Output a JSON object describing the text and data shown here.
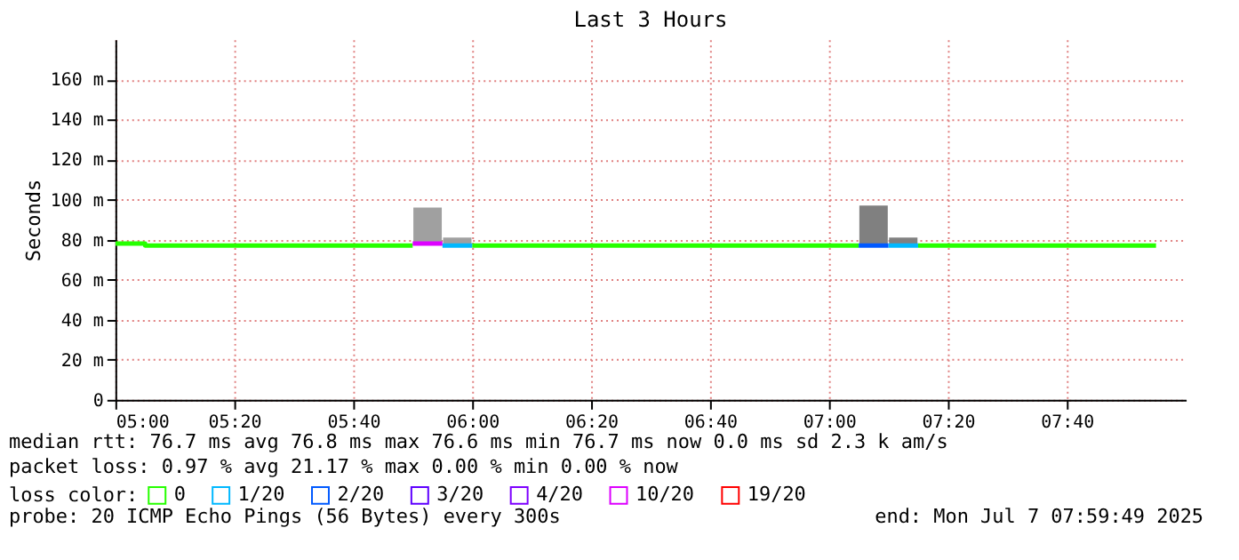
{
  "chart_data": {
    "type": "line",
    "title": "Last 3 Hours",
    "ylabel": "Seconds",
    "legend_title": "loss color:",
    "legend": "bottom",
    "grid": true,
    "xlim": [
      5.0,
      8.0
    ],
    "ylim": [
      0,
      180
    ],
    "xticks": [
      {
        "value": 5.0,
        "label": "05:00"
      },
      {
        "value": 5.3333,
        "label": "05:20"
      },
      {
        "value": 5.6667,
        "label": "05:40"
      },
      {
        "value": 6.0,
        "label": "06:00"
      },
      {
        "value": 6.3333,
        "label": "06:20"
      },
      {
        "value": 6.6667,
        "label": "06:40"
      },
      {
        "value": 7.0,
        "label": "07:00"
      },
      {
        "value": 7.3333,
        "label": "07:20"
      },
      {
        "value": 7.6667,
        "label": "07:40"
      }
    ],
    "yticks": [
      0,
      {
        "value": 20,
        "label": "20 m"
      },
      {
        "value": 40,
        "label": "40 m"
      },
      {
        "value": 60,
        "label": "60 m"
      },
      {
        "value": 80,
        "label": "80 m"
      },
      {
        "value": 100,
        "label": "100 m"
      },
      {
        "value": 120,
        "label": "120 m"
      },
      {
        "value": 140,
        "label": "140 m"
      },
      {
        "value": 160,
        "label": "160 m"
      }
    ],
    "series": [
      {
        "type": "bar",
        "x": [
          5.875,
          5.9583,
          7.125,
          7.2083
        ],
        "base": [
          78,
          78,
          78,
          78
        ],
        "values": [
          18,
          3,
          19,
          3
        ],
        "colors": [
          "#a0a0a0",
          "#a0a0a0",
          "#808080",
          "#808080"
        ]
      },
      {
        "name": "0",
        "color": "#26ff00",
        "x": [
          5.0,
          5.0833,
          5.0833,
          5.8333,
          null,
          6.0,
          7.0833,
          null,
          7.25,
          7.9167
        ],
        "values": [
          78,
          78,
          77,
          77,
          null,
          77,
          77,
          null,
          77,
          77
        ]
      },
      {
        "name": "1/20",
        "color": "#00b8ff",
        "x": [
          5.9167,
          6.0,
          null,
          7.1667,
          7.25
        ],
        "values": [
          77,
          77,
          null,
          77,
          77
        ]
      },
      {
        "name": "2/20",
        "color": "#0059ff",
        "x": [
          7.0833,
          7.1667
        ],
        "values": [
          77,
          77
        ]
      },
      {
        "name": "3/20",
        "color": "#5e00ff"
      },
      {
        "name": "4/20",
        "color": "#7e00ff"
      },
      {
        "name": "10/20",
        "color": "#dd00ff",
        "x": [
          5.8333,
          5.9167
        ],
        "values": [
          78,
          78
        ]
      },
      {
        "name": "19/20",
        "color": "#ff0000"
      }
    ],
    "annotations": [
      "median rtt:  76.7 ms avg  76.8 ms max  76.6 ms min  76.7 ms now  0.0 ms sd  2.3 k am/s",
      "packet loss: 0.97 % avg  21.17 % max  0.00 % min  0.00 % now",
      "probe:       20 ICMP Echo Pings (56 Bytes) every 300s",
      "end: Mon Jul  7 07:59:49 2025"
    ]
  }
}
